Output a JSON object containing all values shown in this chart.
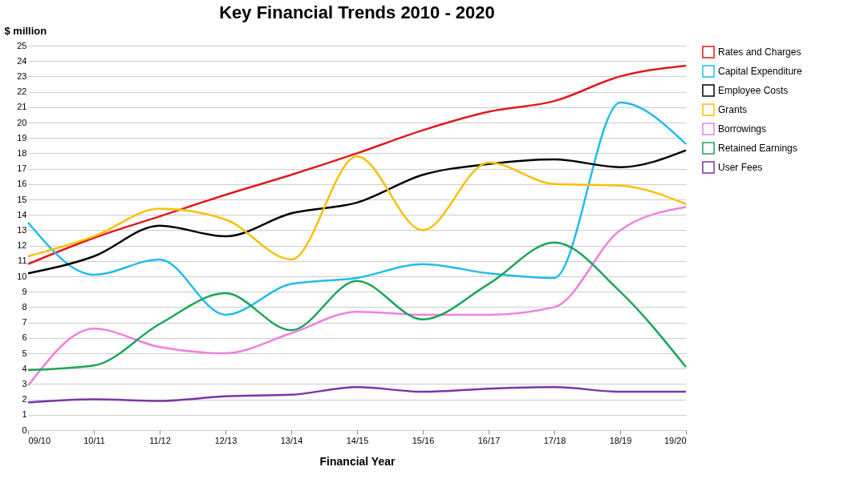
{
  "chart_data": {
    "type": "line",
    "title": "Key Financial Trends 2010 - 2020",
    "xlabel": "Financial Year",
    "ylabel": "$ million",
    "categories": [
      "09/10",
      "10/11",
      "11/12",
      "12/13",
      "13/14",
      "14/15",
      "15/16",
      "16/17",
      "17/18",
      "18/19",
      "19/20"
    ],
    "series": [
      {
        "name": "Rates and Charges",
        "color": "#e0191e",
        "values": [
          10.8,
          12.5,
          13.9,
          15.3,
          16.6,
          18.0,
          19.5,
          20.7,
          21.4,
          23.0,
          23.7
        ]
      },
      {
        "name": "Capital Expenditure",
        "color": "#1fbcee",
        "values": [
          13.5,
          10.1,
          11.1,
          7.5,
          9.5,
          9.9,
          10.8,
          10.2,
          9.9,
          21.3,
          18.6
        ]
      },
      {
        "name": "Employee Costs",
        "color": "#000000",
        "values": [
          10.2,
          11.3,
          13.3,
          12.6,
          14.1,
          14.8,
          16.6,
          17.3,
          17.6,
          17.1,
          18.2
        ]
      },
      {
        "name": "Grants",
        "color": "#fbbf0a",
        "values": [
          11.3,
          12.6,
          14.4,
          13.7,
          11.1,
          17.8,
          13.0,
          17.4,
          16.0,
          15.9,
          14.7
        ]
      },
      {
        "name": "Borrowings",
        "color": "#f07fe0",
        "values": [
          2.9,
          6.6,
          5.4,
          5.0,
          6.3,
          7.7,
          7.5,
          7.5,
          8.0,
          13.0,
          14.5
        ]
      },
      {
        "name": "Retained Earnings",
        "color": "#1ba55a",
        "values": [
          3.9,
          4.2,
          6.9,
          8.9,
          6.5,
          9.7,
          7.2,
          9.5,
          12.2,
          9.0,
          4.1
        ]
      },
      {
        "name": "User Fees",
        "color": "#7a35a8",
        "values": [
          1.8,
          2.0,
          1.9,
          2.2,
          2.3,
          2.8,
          2.5,
          2.7,
          2.8,
          2.5,
          2.5
        ]
      }
    ],
    "ylim": [
      0,
      25
    ],
    "yticks": [
      0,
      1,
      2,
      3,
      4,
      5,
      6,
      7,
      8,
      9,
      10,
      11,
      12,
      13,
      14,
      15,
      16,
      17,
      18,
      19,
      20,
      21,
      22,
      23,
      24,
      25
    ],
    "grid": "y",
    "legend": "right",
    "marker": "none",
    "line_style": "solid"
  }
}
